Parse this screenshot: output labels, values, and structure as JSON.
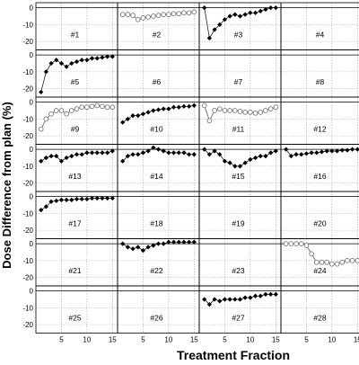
{
  "chart_data": {
    "type": "line",
    "xlabel": "Treatment Fraction",
    "ylabel": "Dose Difference from plan (%)",
    "xlim": [
      0,
      16
    ],
    "ylim": [
      -25,
      3
    ],
    "x_ticks": [
      5,
      10,
      15
    ],
    "y_ticks": [
      0,
      -10,
      -20
    ],
    "grid": true,
    "layout": "7 rows x 4 columns of panels",
    "marker_styles": {
      "diamond": "filled diamond",
      "circle": "open circle"
    },
    "colors": {
      "diamond": "#000000",
      "circle": "#777777",
      "frame": "#000000",
      "grid": "#9a9a9a"
    },
    "panels": [
      {
        "label": "#1",
        "marker": "diamond",
        "x": [],
        "y": []
      },
      {
        "label": "#2",
        "marker": "circle",
        "x": [
          1,
          2,
          3,
          4,
          5,
          6,
          7,
          8,
          9,
          10,
          11,
          12,
          13,
          14,
          15
        ],
        "y": [
          -4,
          -4,
          -4.5,
          -7,
          -6,
          -5.5,
          -5,
          -4.5,
          -4,
          -4,
          -3.5,
          -3.5,
          -3,
          -3,
          -2.5
        ]
      },
      {
        "label": "#3",
        "marker": "diamond",
        "x": [
          1,
          2,
          3,
          4,
          5,
          6,
          7,
          8,
          9,
          10,
          11,
          12,
          13,
          14,
          15
        ],
        "y": [
          0,
          -18,
          -13,
          -10,
          -7,
          -5,
          -4,
          -5,
          -4,
          -3,
          -3,
          -2,
          -1,
          0,
          0
        ]
      },
      {
        "label": "#4",
        "marker": "diamond",
        "x": [],
        "y": []
      },
      {
        "label": "#5",
        "marker": "diamond",
        "x": [
          1,
          2,
          3,
          4,
          5,
          6,
          7,
          8,
          9,
          10,
          11,
          12,
          13,
          14,
          15
        ],
        "y": [
          -22,
          -10,
          -5,
          -3,
          -5,
          -7,
          -5,
          -4,
          -3,
          -3,
          -2,
          -2,
          -1.5,
          -1,
          -1
        ]
      },
      {
        "label": "#6",
        "marker": "diamond",
        "x": [],
        "y": []
      },
      {
        "label": "#7",
        "marker": "diamond",
        "x": [],
        "y": []
      },
      {
        "label": "#8",
        "marker": "diamond",
        "x": [],
        "y": []
      },
      {
        "label": "#9",
        "marker": "circle",
        "x": [
          1,
          2,
          3,
          4,
          5,
          6,
          7,
          8,
          9,
          10,
          11,
          12,
          13,
          14,
          15
        ],
        "y": [
          -16,
          -10,
          -7,
          -5,
          -5,
          -7,
          -5,
          -4,
          -3,
          -3,
          -2.5,
          -2,
          -2.5,
          -3,
          -3
        ]
      },
      {
        "label": "#10",
        "marker": "diamond",
        "x": [
          1,
          2,
          3,
          4,
          5,
          6,
          7,
          8,
          9,
          10,
          11,
          12,
          13,
          14,
          15
        ],
        "y": [
          -12,
          -10,
          -8,
          -8,
          -7,
          -6,
          -5,
          -4.5,
          -4,
          -4,
          -3,
          -3,
          -2.5,
          -2.5,
          -2
        ]
      },
      {
        "label": "#11",
        "marker": "circle",
        "x": [
          1,
          2,
          3,
          4,
          5,
          6,
          7,
          8,
          9,
          10,
          11,
          12,
          13,
          14,
          15
        ],
        "y": [
          -2,
          -11,
          -5,
          -4,
          -5,
          -5,
          -5,
          -5.5,
          -6,
          -6,
          -6.5,
          -6,
          -5,
          -4,
          -3
        ]
      },
      {
        "label": "#12",
        "marker": "diamond",
        "x": [],
        "y": []
      },
      {
        "label": "#13",
        "marker": "diamond",
        "x": [
          1,
          2,
          3,
          4,
          5,
          6,
          7,
          8,
          9,
          10,
          11,
          12,
          13,
          14,
          15
        ],
        "y": [
          -7,
          -5,
          -4,
          -4,
          -7,
          -5,
          -4,
          -3,
          -3,
          -2,
          -2,
          -2,
          -2,
          -2,
          -1
        ]
      },
      {
        "label": "#14",
        "marker": "diamond",
        "x": [
          1,
          2,
          3,
          4,
          5,
          6,
          7,
          8,
          9,
          10,
          11,
          12,
          13,
          14,
          15
        ],
        "y": [
          -7,
          -4,
          -3,
          -3,
          -2,
          -1,
          1,
          0,
          -1,
          -2,
          -2,
          -2,
          -2,
          -3,
          -3
        ]
      },
      {
        "label": "#15",
        "marker": "diamond",
        "x": [
          1,
          2,
          3,
          4,
          5,
          6,
          7,
          8,
          9,
          10,
          11,
          12,
          13,
          14,
          15
        ],
        "y": [
          0,
          -3,
          -1,
          -3,
          -7,
          -8,
          -10,
          -10,
          -8,
          -6,
          -5,
          -4,
          -4,
          -2,
          -1
        ]
      },
      {
        "label": "#16",
        "marker": "diamond",
        "x": [
          1,
          2,
          3,
          4,
          5,
          6,
          7,
          8,
          9,
          10,
          11,
          12,
          13,
          14,
          15
        ],
        "y": [
          0,
          -4,
          -3,
          -3,
          -2.5,
          -2,
          -2,
          -1.5,
          -1,
          -1,
          -1,
          -0.5,
          -0.5,
          0,
          0
        ]
      },
      {
        "label": "#17",
        "marker": "diamond",
        "x": [
          1,
          2,
          3,
          4,
          5,
          6,
          7,
          8,
          9,
          10,
          11,
          12,
          13,
          14,
          15
        ],
        "y": [
          -8,
          -6,
          -3,
          -2.5,
          -2,
          -2,
          -2,
          -1.5,
          -1.5,
          -1.5,
          -1,
          -1,
          -1,
          -1,
          -1
        ]
      },
      {
        "label": "#18",
        "marker": "diamond",
        "x": [],
        "y": []
      },
      {
        "label": "#19",
        "marker": "diamond",
        "x": [],
        "y": []
      },
      {
        "label": "#20",
        "marker": "diamond",
        "x": [],
        "y": []
      },
      {
        "label": "#21",
        "marker": "diamond",
        "x": [],
        "y": []
      },
      {
        "label": "#22",
        "marker": "diamond",
        "x": [
          1,
          2,
          3,
          4,
          5,
          6,
          7,
          8,
          9,
          10,
          11,
          12,
          13,
          14,
          15
        ],
        "y": [
          0,
          -2,
          -3,
          -2,
          -4,
          -2,
          -1,
          0,
          0,
          1,
          1,
          1,
          1,
          1,
          1
        ]
      },
      {
        "label": "#23",
        "marker": "diamond",
        "x": [],
        "y": []
      },
      {
        "label": "#24",
        "marker": "circle",
        "x": [
          1,
          2,
          3,
          4,
          5,
          6,
          7,
          8,
          9,
          10,
          11,
          12,
          13,
          14,
          15
        ],
        "y": [
          0,
          0,
          0,
          0,
          -1,
          -6,
          -11,
          -11,
          -11,
          -12,
          -12,
          -11,
          -10,
          -10,
          -10
        ]
      },
      {
        "label": "#25",
        "marker": "diamond",
        "x": [],
        "y": []
      },
      {
        "label": "#26",
        "marker": "diamond",
        "x": [],
        "y": []
      },
      {
        "label": "#27",
        "marker": "diamond",
        "x": [
          1,
          2,
          3,
          4,
          5,
          6,
          7,
          8,
          9,
          10,
          11,
          12,
          13,
          14,
          15
        ],
        "y": [
          -5,
          -8,
          -5,
          -6,
          -5,
          -5,
          -5,
          -5,
          -4,
          -4,
          -3,
          -3,
          -2,
          -2,
          -2
        ]
      },
      {
        "label": "#28",
        "marker": "diamond",
        "x": [],
        "y": []
      }
    ]
  }
}
